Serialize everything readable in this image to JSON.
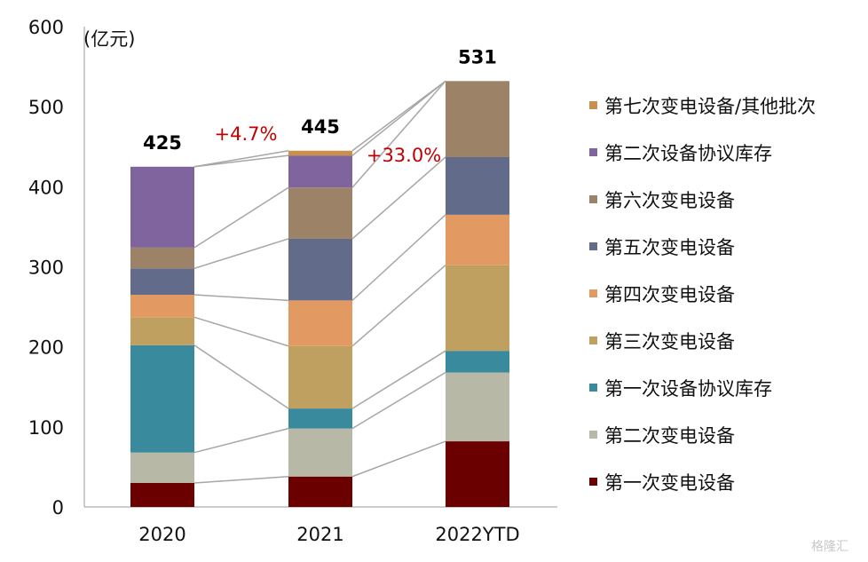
{
  "chart_data": {
    "type": "bar",
    "stacked": true,
    "unit_label": "(亿元)",
    "categories": [
      "2020",
      "2021",
      "2022YTD"
    ],
    "ylim": [
      0,
      600
    ],
    "yticks": [
      "0",
      "100",
      "200",
      "300",
      "400",
      "500",
      "600"
    ],
    "series": [
      {
        "name": "第一次变电设备",
        "color": "#6b0000",
        "values": [
          30,
          38,
          82
        ]
      },
      {
        "name": "第二次变电设备",
        "color": "#b8b8a6",
        "values": [
          38,
          60,
          86
        ]
      },
      {
        "name": "第一次设备协议库存",
        "color": "#3a8a9e",
        "values": [
          134,
          25,
          27
        ]
      },
      {
        "name": "第三次变电设备",
        "color": "#c0a060",
        "values": [
          35,
          78,
          107
        ]
      },
      {
        "name": "第四次变电设备",
        "color": "#e29a62",
        "values": [
          28,
          57,
          63
        ]
      },
      {
        "name": "第五次变电设备",
        "color": "#636b8a",
        "values": [
          33,
          77,
          72
        ]
      },
      {
        "name": "第六次变电设备",
        "color": "#9c8266",
        "values": [
          26,
          64,
          95
        ]
      },
      {
        "name": "第二次设备协议库存",
        "color": "#80649e",
        "values": [
          101,
          40,
          0
        ]
      },
      {
        "name": "第七次变电设备/其他批次",
        "color": "#c8904a",
        "values": [
          0,
          6,
          0
        ]
      }
    ],
    "totals": [
      "425",
      "445",
      "531"
    ],
    "growth_labels": [
      "+4.7%",
      "+33.0%"
    ],
    "legend_order_top_to_bottom": [
      8,
      7,
      6,
      5,
      4,
      3,
      2,
      1,
      0
    ],
    "legend_position": "right"
  },
  "watermark": "格隆汇"
}
